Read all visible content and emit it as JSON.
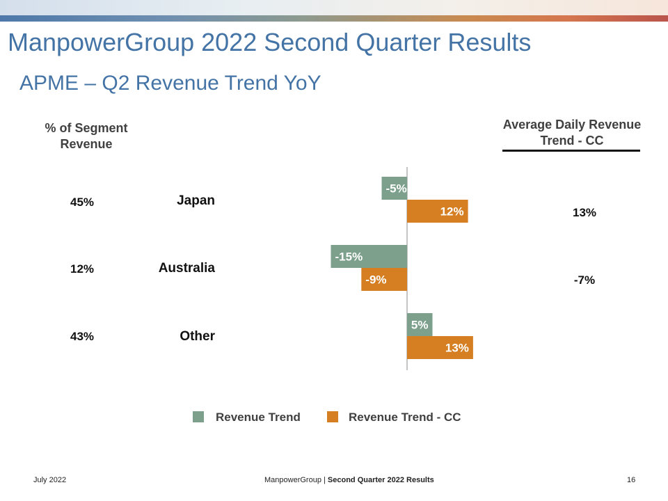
{
  "slide": {
    "title": "ManpowerGroup 2022 Second Quarter Results",
    "subtitle": "APME – Q2 Revenue Trend YoY",
    "left_header": "% of Segment Revenue",
    "right_header": "Average Daily Revenue Trend - CC"
  },
  "rows": [
    {
      "segment_pct": "45%",
      "region": "Japan",
      "avg_daily_cc": "13%"
    },
    {
      "segment_pct": "12%",
      "region": "Australia",
      "avg_daily_cc": "-7%"
    },
    {
      "segment_pct": "43%",
      "region": "Other",
      "avg_daily_cc": ""
    }
  ],
  "chart_data": {
    "type": "bar",
    "orientation": "horizontal",
    "categories": [
      "Japan",
      "Australia",
      "Other"
    ],
    "series": [
      {
        "name": "Revenue Trend",
        "values": [
          -5,
          -15,
          5
        ],
        "labels": [
          "-5%",
          "-15%",
          "5%"
        ],
        "color": "#7ca08c"
      },
      {
        "name": "Revenue Trend - CC",
        "values": [
          12,
          -9,
          13
        ],
        "labels": [
          "12%",
          "-9%",
          "13%"
        ],
        "color": "#d57f22"
      }
    ],
    "unit": "%",
    "legend": "bottom"
  },
  "footer": {
    "date": "July 2022",
    "company": "ManpowerGroup",
    "separator": "|",
    "report": "Second Quarter 2022 Results",
    "page": "16"
  },
  "colors": {
    "title": "#4473a6",
    "revenue_trend": "#7ca08c",
    "revenue_trend_cc": "#d57f22"
  }
}
